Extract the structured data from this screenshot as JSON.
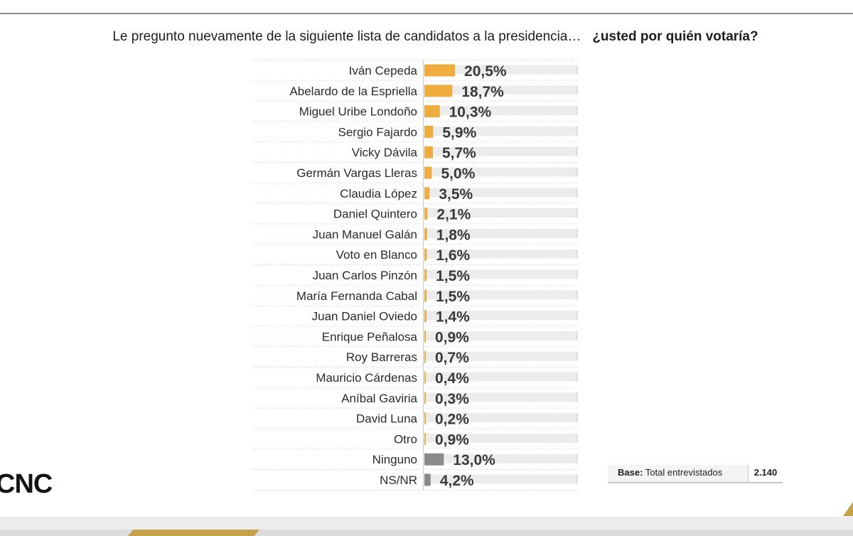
{
  "question": {
    "text": "Le pregunto nuevamente de la siguiente lista de candidatos a la presidencia…",
    "bold": "¿usted por quién votaría?"
  },
  "chart_data": {
    "type": "bar",
    "orientation": "horizontal",
    "xlim": [
      0,
      100
    ],
    "categories": [
      "Iván Cepeda",
      "Abelardo de la Espriella",
      "Miguel Uribe Londoño",
      "Sergio Fajardo",
      "Vicky Dávila",
      "Germán Vargas Lleras",
      "Claudia López",
      "Daniel Quintero",
      "Juan Manuel Galán",
      "Voto en Blanco",
      "Juan Carlos Pinzón",
      "María Fernanda Cabal",
      "Juan Daniel Oviedo",
      "Enrique Peñalosa",
      "Roy Barreras",
      "Mauricio Cárdenas",
      "Aníbal Gaviria",
      "David Luna",
      "Otro",
      "Ninguno",
      "NS/NR"
    ],
    "values": [
      20.5,
      18.7,
      10.3,
      5.9,
      5.7,
      5.0,
      3.5,
      2.1,
      1.8,
      1.6,
      1.5,
      1.5,
      1.4,
      0.9,
      0.7,
      0.4,
      0.3,
      0.2,
      0.9,
      13.0,
      4.2
    ],
    "value_labels": [
      "20,5%",
      "18,7%",
      "10,3%",
      "5,9%",
      "5,7%",
      "5,0%",
      "3,5%",
      "2,1%",
      "1,8%",
      "1,6%",
      "1,5%",
      "1,5%",
      "1,4%",
      "0,9%",
      "0,7%",
      "0,4%",
      "0,3%",
      "0,2%",
      "0,9%",
      "13,0%",
      "4,2%"
    ],
    "colors": {
      "candidate": "#f0ad3f",
      "other_response": "#8a8a8a",
      "track": "#ececec"
    },
    "gray_categories": [
      "Ninguno",
      "NS/NR"
    ]
  },
  "base": {
    "label": "Base:",
    "text": "Total entrevistados",
    "value": "2.140"
  },
  "logo": "CNC"
}
